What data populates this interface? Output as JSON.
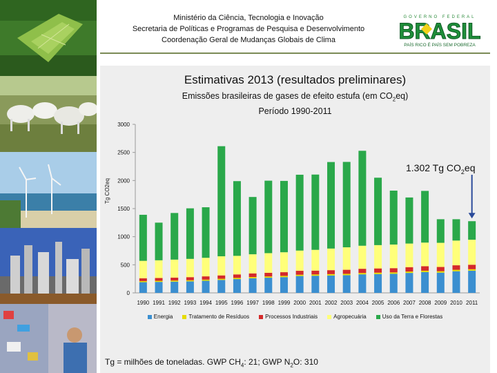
{
  "header": {
    "line1": "Ministério da Ciência, Tecnologia e Inovação",
    "line2": "Secretaria de Políticas e Programas de Pesquisa e Desenvolvimento",
    "line3": "Coordenação Geral de Mudanças Globais de Clima"
  },
  "logo": {
    "top_text": "GOVERNO FEDERAL",
    "word": "BRASIL",
    "tagline": "PAÍS RICO É PAÍS SEM POBREZA"
  },
  "footnote": {
    "a": "Tg = milhões de toneladas. GWP CH",
    "b": "4",
    "c": ": 21; GWP N",
    "d": "2",
    "e": "O: 310"
  },
  "colors": {
    "energia": "#3b8fd0",
    "residuos": "#e6dc00",
    "industriais": "#d42a2a",
    "agro": "#ffff7a",
    "lulucf": "#2aa84a"
  },
  "chart_data": {
    "type": "bar",
    "stacked": true,
    "title": "Estimativas 2013 (resultados preliminares)",
    "subtitle_a": "Emissões brasileiras de gases de efeito estufa (em CO",
    "subtitle_sub": "2",
    "subtitle_b": "eq)",
    "period": "Período 1990-2011",
    "ylabel": "Tg CO2eq",
    "ylim": [
      0,
      3000
    ],
    "yticks": [
      0,
      500,
      1000,
      1500,
      2000,
      2500,
      3000
    ],
    "annotation_a": "1.302 Tg CO",
    "annotation_sub": "2",
    "annotation_b": "eq",
    "categories": [
      "1990",
      "1991",
      "1992",
      "1993",
      "1994",
      "1995",
      "1996",
      "1997",
      "1998",
      "1999",
      "2000",
      "2001",
      "2002",
      "2003",
      "2004",
      "2005",
      "2006",
      "2007",
      "2008",
      "2009",
      "2010",
      "2011"
    ],
    "series": [
      {
        "name": "Energia",
        "values": [
          190,
          195,
          200,
          205,
          215,
          230,
          245,
          260,
          270,
          280,
          300,
          305,
          310,
          315,
          330,
          335,
          340,
          355,
          370,
          360,
          385,
          395
        ]
      },
      {
        "name": "Tratamento de Resíduos",
        "values": [
          20,
          20,
          20,
          20,
          21,
          21,
          22,
          22,
          22,
          23,
          23,
          23,
          24,
          24,
          24,
          25,
          25,
          25,
          25,
          26,
          26,
          26
        ]
      },
      {
        "name": "Processos Industriais",
        "values": [
          50,
          50,
          52,
          55,
          58,
          60,
          62,
          65,
          65,
          65,
          70,
          68,
          70,
          72,
          75,
          75,
          75,
          78,
          80,
          75,
          80,
          80
        ]
      },
      {
        "name": "Agropecuária",
        "values": [
          310,
          315,
          320,
          325,
          330,
          340,
          330,
          340,
          350,
          355,
          360,
          370,
          385,
          400,
          410,
          415,
          420,
          420,
          420,
          430,
          440,
          445
        ]
      },
      {
        "name": "Uso da Terra e Florestas",
        "values": [
          820,
          670,
          830,
          900,
          900,
          1960,
          1330,
          1020,
          1290,
          1270,
          1350,
          1340,
          1540,
          1520,
          1690,
          1200,
          960,
          820,
          920,
          420,
          380,
          330
        ]
      }
    ]
  }
}
